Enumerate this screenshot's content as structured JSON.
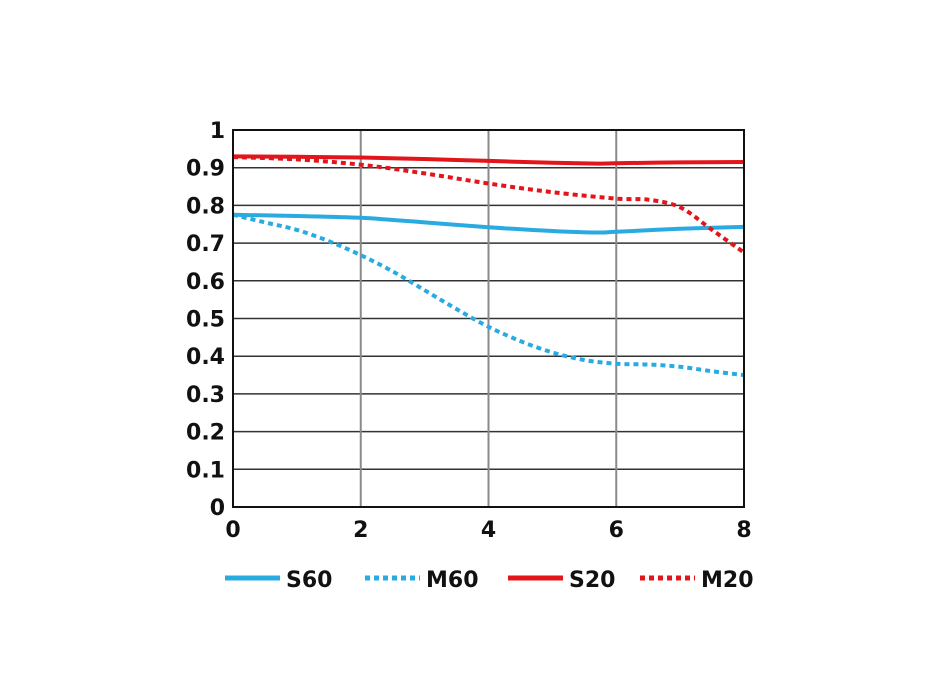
{
  "chart_data": {
    "type": "line",
    "title": "",
    "xlabel": "",
    "ylabel": "",
    "xlim": [
      0,
      8
    ],
    "ylim": [
      0,
      1
    ],
    "x_ticks": [
      "0",
      "2",
      "4",
      "6",
      "8"
    ],
    "y_ticks": [
      "0",
      "0.1",
      "0.2",
      "0.3",
      "0.4",
      "0.5",
      "0.6",
      "0.7",
      "0.8",
      "0.9",
      "1"
    ],
    "grid": true,
    "legend_position": "bottom",
    "series": [
      {
        "name": "S60",
        "color": "#29abe2",
        "style": "solid",
        "x": [
          0,
          1,
          2,
          3,
          4,
          5,
          5.7,
          6,
          7,
          8
        ],
        "y": [
          0.775,
          0.772,
          0.767,
          0.755,
          0.742,
          0.732,
          0.728,
          0.73,
          0.738,
          0.743
        ]
      },
      {
        "name": "M60",
        "color": "#29abe2",
        "style": "dotted",
        "x": [
          0,
          0.5,
          1,
          1.5,
          2,
          2.5,
          3,
          3.5,
          4,
          4.5,
          5,
          5.5,
          6,
          6.5,
          7,
          7.5,
          8
        ],
        "y": [
          0.775,
          0.755,
          0.735,
          0.705,
          0.668,
          0.625,
          0.575,
          0.525,
          0.478,
          0.44,
          0.41,
          0.39,
          0.38,
          0.378,
          0.372,
          0.36,
          0.35
        ]
      },
      {
        "name": "S20",
        "color": "#e3151a",
        "style": "solid",
        "x": [
          0,
          1,
          2,
          3,
          4,
          5,
          5.7,
          6,
          7,
          8
        ],
        "y": [
          0.93,
          0.929,
          0.927,
          0.923,
          0.918,
          0.913,
          0.911,
          0.912,
          0.914,
          0.915
        ]
      },
      {
        "name": "M20",
        "color": "#e3151a",
        "style": "dotted",
        "x": [
          0,
          1,
          2,
          3,
          4,
          5,
          6,
          6.5,
          7,
          7.5,
          8
        ],
        "y": [
          0.928,
          0.922,
          0.908,
          0.885,
          0.858,
          0.835,
          0.818,
          0.815,
          0.795,
          0.735,
          0.675
        ]
      }
    ]
  }
}
